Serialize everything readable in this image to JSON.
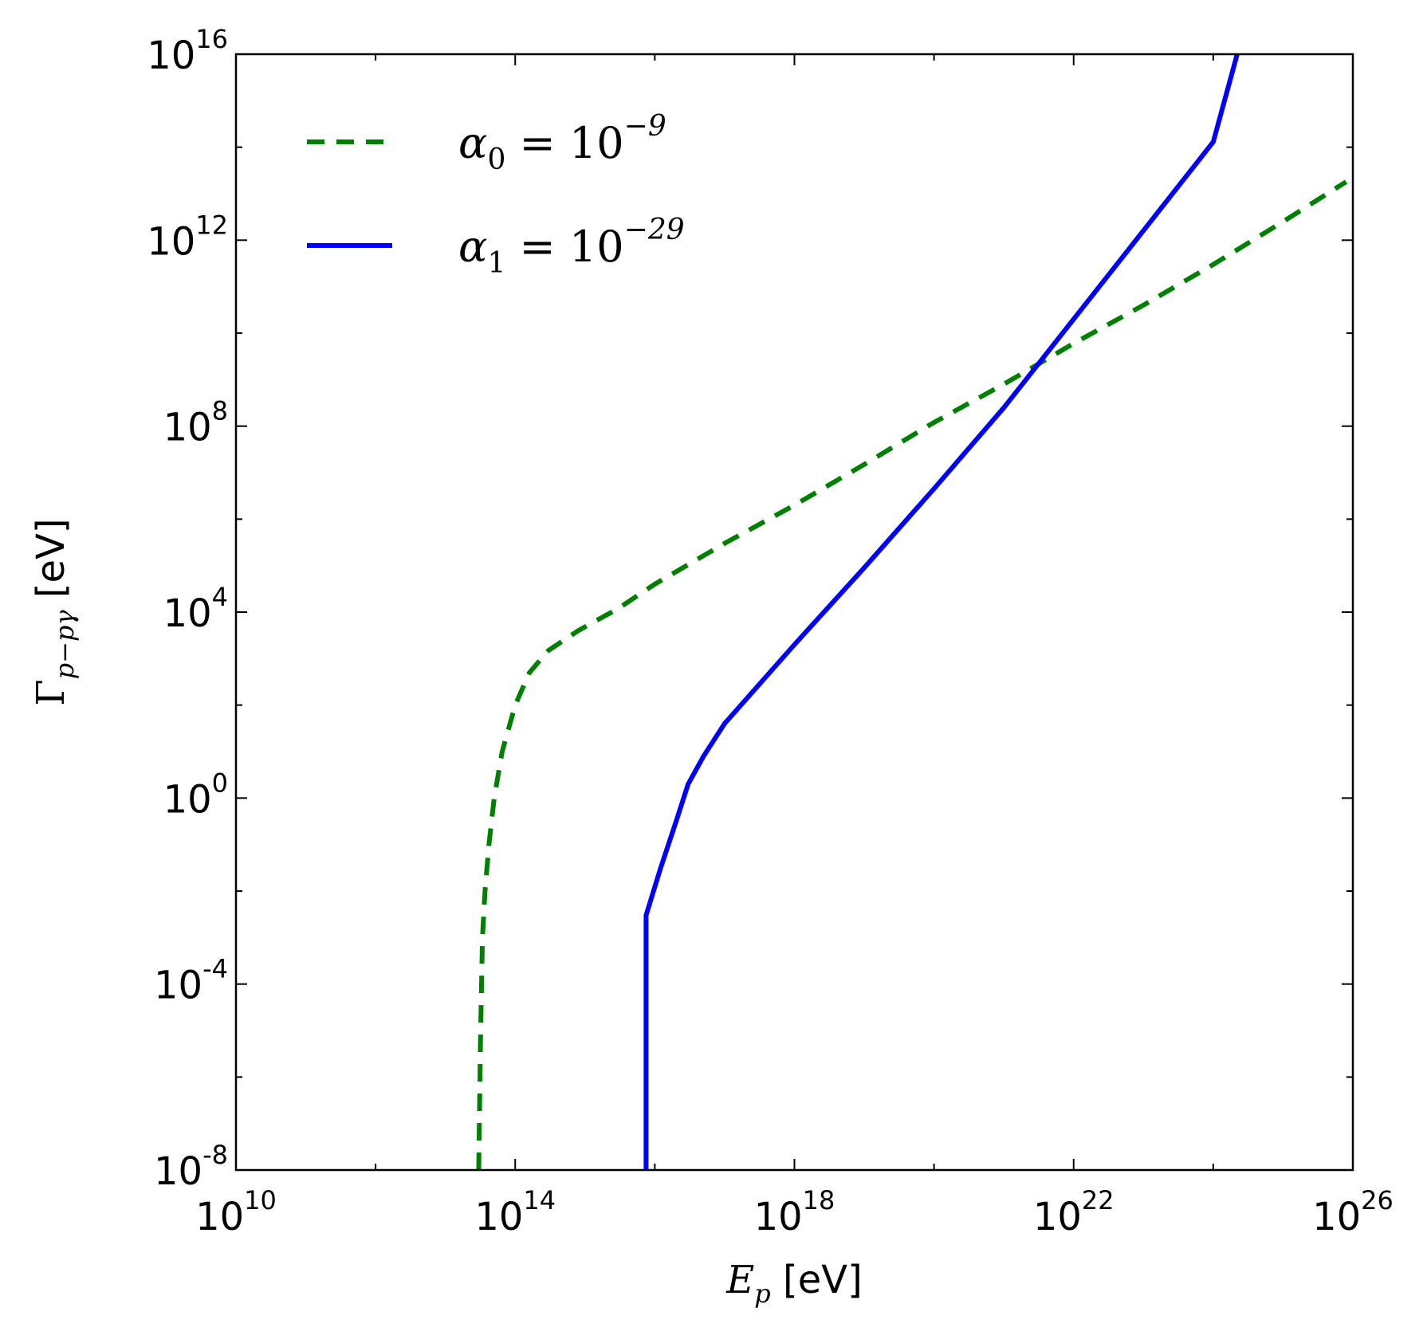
{
  "chart_data": {
    "type": "line",
    "xscale": "log",
    "yscale": "log",
    "xlim": [
      10000000000.0,
      1e+26
    ],
    "ylim": [
      1e-08,
      1e+16
    ],
    "xlabel": {
      "symbol": "E",
      "sub": "p",
      "unit": "[eV]"
    },
    "ylabel": {
      "symbol": "Γ",
      "sub": "p−pγ",
      "unit": "[eV]"
    },
    "xticks": [
      {
        "base": "10",
        "exp": "10",
        "value": 10000000000.0
      },
      {
        "base": "10",
        "exp": "14",
        "value": 100000000000000.0
      },
      {
        "base": "10",
        "exp": "18",
        "value": 1e+18
      },
      {
        "base": "10",
        "exp": "22",
        "value": 1e+22
      },
      {
        "base": "10",
        "exp": "26",
        "value": 1e+26
      }
    ],
    "yticks": [
      {
        "base": "10",
        "exp": "-8",
        "value": 1e-08
      },
      {
        "base": "10",
        "exp": "-4",
        "value": 0.0001
      },
      {
        "base": "10",
        "exp": "0",
        "value": 1
      },
      {
        "base": "10",
        "exp": "4",
        "value": 10000.0
      },
      {
        "base": "10",
        "exp": "8",
        "value": 100000000.0
      },
      {
        "base": "10",
        "exp": "12",
        "value": 1000000000000.0
      },
      {
        "base": "10",
        "exp": "16",
        "value": 1e+16
      }
    ],
    "legend_position": "top-left",
    "grid": false,
    "series": [
      {
        "name": "α0 = 10^-9",
        "legend": {
          "sym": "α",
          "sub": "0",
          "eq": " = 10",
          "exp": "−9"
        },
        "color": "#008000",
        "style": "dashed",
        "x": [
          30000000000000.0,
          32000000000000.0,
          34000000000000.0,
          37000000000000.0,
          42000000000000.0,
          50000000000000.0,
          65000000000000.0,
          100000000000000.0,
          160000000000000.0,
          300000000000000.0,
          800000000000000.0,
          3000000000000000.0,
          1e+16,
          1e+17,
          1e+18,
          1e+19,
          1e+20,
          1e+21,
          1e+22,
          1e+23,
          1e+24,
          1e+25,
          8e+25
        ],
        "y": [
          1e-08,
          1e-05,
          0.001,
          0.01,
          0.1,
          1,
          10,
          100,
          500,
          1500,
          4000,
          12000.0,
          40000.0,
          300000.0,
          2000000.0,
          15000000.0,
          120000000.0,
          800000000.0,
          6000000000.0,
          40000000000.0,
          300000000000.0,
          2500000000000.0,
          18000000000000.0
        ]
      },
      {
        "name": "α1 = 10^-29",
        "legend": {
          "sym": "α",
          "sub": "1",
          "eq": " = 10",
          "exp": "−29"
        },
        "color": "#0000ff",
        "style": "solid",
        "x": [
          7500000000000000.0,
          7500000000000000.0,
          7500000000000000.0,
          1.2e+16,
          2e+16,
          3e+16,
          5e+16,
          1e+17,
          1e+18,
          1e+19,
          1e+20,
          1e+21,
          1e+22,
          1e+23,
          1e+24,
          2.2e+24
        ],
        "y": [
          1e-08,
          0.0001,
          0.003,
          0.03,
          0.3,
          2,
          8,
          40,
          2000.0,
          90000.0,
          4500000.0,
          250000000.0,
          20000000000.0,
          1600000000000.0,
          130000000000000.0,
          1e+16
        ]
      }
    ]
  }
}
